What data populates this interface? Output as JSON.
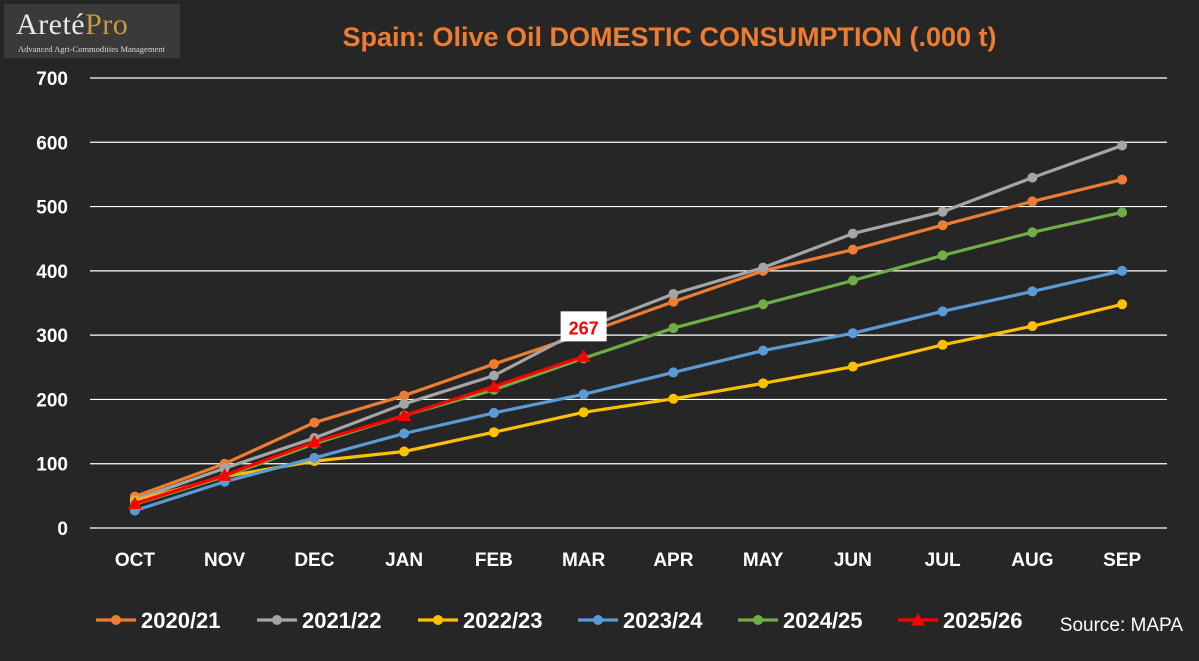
{
  "logo": {
    "main": "Areté",
    "accent": "Pro",
    "tagline": "Advanced Agri-Commodities Management"
  },
  "source": "Source: MAPA",
  "colors": {
    "background": "#262626",
    "grid": "#ffffff",
    "title": "#ed7d31",
    "annotation_text": "#ff0000"
  },
  "chart_data": {
    "type": "line",
    "title": "Spain: Olive Oil DOMESTIC CONSUMPTION (.000 t)",
    "xlabel": "",
    "ylabel": "",
    "categories": [
      "OCT",
      "NOV",
      "DEC",
      "JAN",
      "FEB",
      "MAR",
      "APR",
      "MAY",
      "JUN",
      "JUL",
      "AUG",
      "SEP"
    ],
    "ylim": [
      0,
      700
    ],
    "yticks": [
      0,
      100,
      200,
      300,
      400,
      500,
      600,
      700
    ],
    "grid": true,
    "legend_position": "bottom",
    "series": [
      {
        "name": "2020/21",
        "color": "#ed7d31",
        "marker": "circle",
        "values": [
          49,
          100,
          164,
          206,
          255,
          302,
          352,
          400,
          433,
          471,
          508,
          542
        ]
      },
      {
        "name": "2021/22",
        "color": "#a5a5a5",
        "marker": "circle",
        "values": [
          44,
          93,
          140,
          193,
          237,
          310,
          364,
          405,
          458,
          492,
          545,
          595
        ]
      },
      {
        "name": "2022/23",
        "color": "#ffc000",
        "marker": "circle",
        "values": [
          42,
          80,
          104,
          119,
          149,
          180,
          201,
          225,
          251,
          285,
          314,
          348
        ]
      },
      {
        "name": "2023/24",
        "color": "#5b9bd5",
        "marker": "circle",
        "values": [
          27,
          72,
          109,
          147,
          179,
          208,
          242,
          276,
          303,
          337,
          368,
          400
        ]
      },
      {
        "name": "2024/25",
        "color": "#70ad47",
        "marker": "circle",
        "values": [
          37,
          80,
          131,
          175,
          215,
          264,
          311,
          348,
          385,
          424,
          460,
          491
        ]
      },
      {
        "name": "2025/26",
        "color": "#ff0000",
        "marker": "triangle",
        "values": [
          38,
          82,
          134,
          175,
          220,
          267,
          null,
          null,
          null,
          null,
          null,
          null
        ]
      }
    ],
    "annotations": [
      {
        "series": "2025/26",
        "category": "MAR",
        "text": "267"
      }
    ]
  }
}
